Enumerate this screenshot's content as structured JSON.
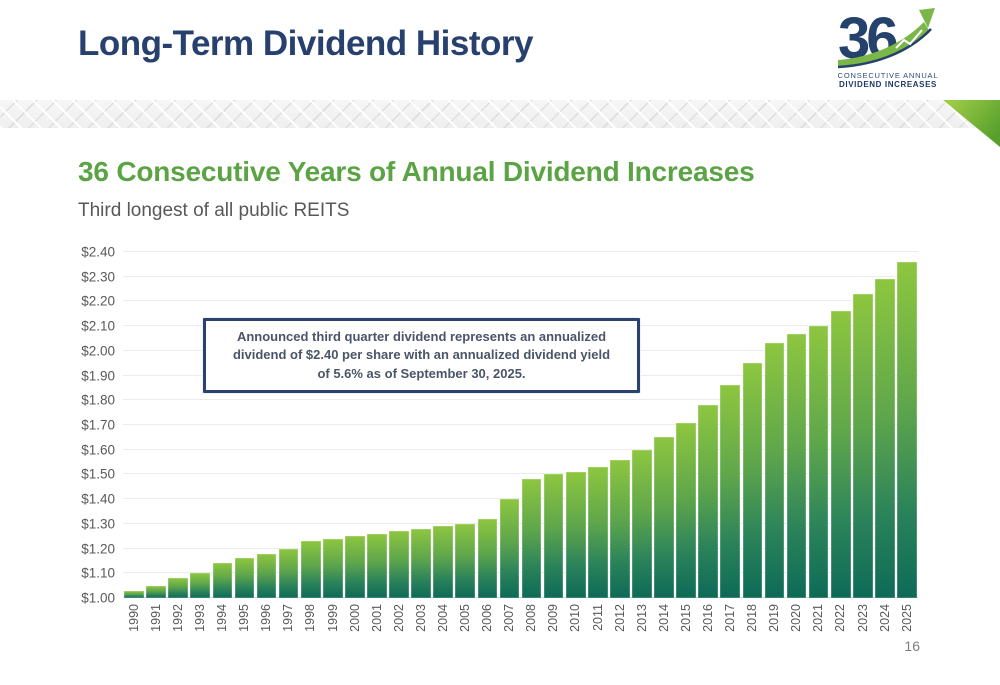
{
  "header": {
    "title": "Long-Term Dividend History",
    "logo": {
      "number": "36",
      "line1": "CONSECUTIVE ANNUAL",
      "line2": "DIVIDEND INCREASES"
    }
  },
  "section": {
    "heading": "36 Consecutive Years of Annual Dividend Increases",
    "subheading": "Third longest of all public REITS"
  },
  "callout": {
    "lines": [
      "Announced third quarter dividend represents an annualized",
      "dividend of $2.40 per share with an annualized dividend yield",
      "of 5.6% as of September 30, 2025."
    ]
  },
  "chart_data": {
    "type": "bar",
    "title": "",
    "xlabel": "",
    "ylabel": "",
    "categories": [
      "1990",
      "1991",
      "1992",
      "1993",
      "1994",
      "1995",
      "1996",
      "1997",
      "1998",
      "1999",
      "2000",
      "2001",
      "2002",
      "2003",
      "2004",
      "2005",
      "2006",
      "2007",
      "2008",
      "2009",
      "2010",
      "2011",
      "2012",
      "2013",
      "2014",
      "2015",
      "2016",
      "2017",
      "2018",
      "2019",
      "2020",
      "2021",
      "2022",
      "2023",
      "2024",
      "2025"
    ],
    "values": [
      1.03,
      1.05,
      1.08,
      1.1,
      1.14,
      1.16,
      1.18,
      1.2,
      1.23,
      1.24,
      1.25,
      1.26,
      1.27,
      1.28,
      1.29,
      1.3,
      1.32,
      1.4,
      1.48,
      1.5,
      1.51,
      1.53,
      1.56,
      1.6,
      1.65,
      1.71,
      1.78,
      1.86,
      1.95,
      2.03,
      2.07,
      2.1,
      2.16,
      2.23,
      2.29,
      2.36
    ],
    "ylim": [
      1.0,
      2.4
    ],
    "ytick_step": 0.1,
    "ytick_labels": [
      "$1.00",
      "$1.10",
      "$1.20",
      "$1.30",
      "$1.40",
      "$1.50",
      "$1.60",
      "$1.70",
      "$1.80",
      "$1.90",
      "$2.00",
      "$2.10",
      "$2.20",
      "$2.30",
      "$2.40"
    ],
    "grid": "horizontal",
    "legend": "none",
    "bar_gradient_top": "#8dc63f",
    "bar_gradient_bottom": "#0d6a57"
  },
  "colors": {
    "navy": "#27406e",
    "green_heading": "#5ba344",
    "accent_green": "#8dc63f",
    "axis_text": "#595959",
    "callout_border": "#2b4170"
  },
  "footer": {
    "page_number": "16"
  }
}
